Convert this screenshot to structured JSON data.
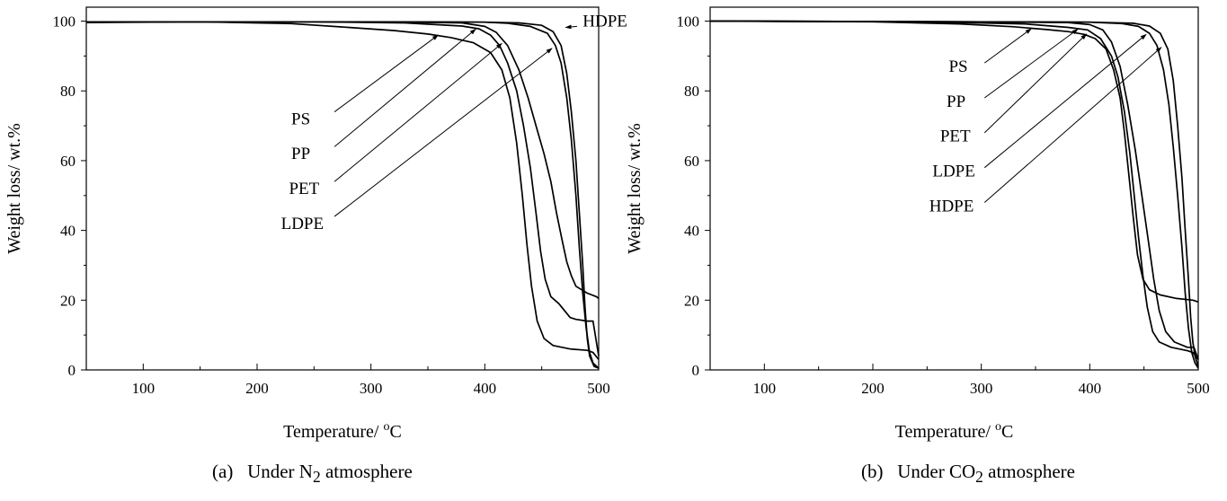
{
  "chart_data": [
    {
      "type": "line",
      "caption": {
        "label": "(a)",
        "pre": "Under N",
        "sub": "2",
        "post": " atmosphere"
      },
      "xlabel": "Temperature/ ",
      "xlabel_sup": "o",
      "xlabel_unit": "C",
      "ylabel": "Weight loss/ wt.%",
      "xlim": [
        50,
        500
      ],
      "ylim": [
        0,
        104
      ],
      "xticks": [
        100,
        200,
        300,
        400,
        500
      ],
      "yticks": [
        0,
        20,
        40,
        60,
        80,
        100
      ],
      "series": [
        {
          "name": "PS",
          "points": [
            [
              50,
              99.6
            ],
            [
              150,
              99.8
            ],
            [
              230,
              99.3
            ],
            [
              280,
              98.2
            ],
            [
              320,
              97.3
            ],
            [
              350,
              96.3
            ],
            [
              370,
              95.3
            ],
            [
              390,
              93.8
            ],
            [
              405,
              91
            ],
            [
              415,
              86
            ],
            [
              422,
              78
            ],
            [
              428,
              65
            ],
            [
              433,
              50
            ],
            [
              437,
              36
            ],
            [
              441,
              24
            ],
            [
              446,
              14
            ],
            [
              452,
              9
            ],
            [
              460,
              7
            ],
            [
              475,
              6
            ],
            [
              490,
              5.6
            ],
            [
              495,
              5
            ],
            [
              500,
              3
            ]
          ]
        },
        {
          "name": "PP",
          "points": [
            [
              50,
              99.8
            ],
            [
              250,
              99.8
            ],
            [
              330,
              99.5
            ],
            [
              380,
              98.6
            ],
            [
              395,
              97.8
            ],
            [
              405,
              96
            ],
            [
              413,
              93
            ],
            [
              420,
              88
            ],
            [
              428,
              80
            ],
            [
              434,
              70
            ],
            [
              440,
              58
            ],
            [
              445,
              45
            ],
            [
              449,
              34
            ],
            [
              453,
              26
            ],
            [
              458,
              21
            ],
            [
              465,
              19
            ],
            [
              475,
              15
            ],
            [
              480,
              14.5
            ],
            [
              490,
              14
            ],
            [
              495,
              14
            ],
            [
              500,
              4
            ]
          ]
        },
        {
          "name": "PET",
          "points": [
            [
              50,
              99.8
            ],
            [
              300,
              99.8
            ],
            [
              380,
              99.5
            ],
            [
              400,
              98.5
            ],
            [
              410,
              96.8
            ],
            [
              420,
              93
            ],
            [
              430,
              86
            ],
            [
              438,
              78
            ],
            [
              445,
              70
            ],
            [
              452,
              62
            ],
            [
              458,
              54
            ],
            [
              463,
              45
            ],
            [
              468,
              37
            ],
            [
              472,
              31
            ],
            [
              476,
              27
            ],
            [
              480,
              24
            ],
            [
              490,
              22
            ],
            [
              498,
              21
            ],
            [
              500,
              20.5
            ]
          ]
        },
        {
          "name": "LDPE",
          "points": [
            [
              50,
              99.8
            ],
            [
              300,
              99.8
            ],
            [
              400,
              99.7
            ],
            [
              420,
              99.4
            ],
            [
              440,
              98.5
            ],
            [
              455,
              96.5
            ],
            [
              462,
              93
            ],
            [
              467,
              88
            ],
            [
              472,
              78
            ],
            [
              476,
              66
            ],
            [
              480,
              50
            ],
            [
              483,
              35
            ],
            [
              486,
              22
            ],
            [
              489,
              12
            ],
            [
              492,
              5
            ],
            [
              495,
              2
            ],
            [
              500,
              0.5
            ]
          ]
        },
        {
          "name": "HDPE",
          "points": [
            [
              50,
              99.8
            ],
            [
              300,
              99.8
            ],
            [
              400,
              99.7
            ],
            [
              430,
              99.5
            ],
            [
              450,
              98.8
            ],
            [
              460,
              97
            ],
            [
              467,
              93
            ],
            [
              472,
              85
            ],
            [
              476,
              74
            ],
            [
              480,
              60
            ],
            [
              483,
              45
            ],
            [
              486,
              30
            ],
            [
              488,
              18
            ],
            [
              490,
              9
            ],
            [
              492,
              4
            ],
            [
              496,
              1
            ],
            [
              500,
              0.5
            ]
          ]
        }
      ],
      "annotations": [
        {
          "text": "PS",
          "target": [
            359,
            96.0
          ],
          "anchor": [
            268,
            74
          ],
          "text_xy": [
            230,
            72
          ]
        },
        {
          "text": "PP",
          "target": [
            392,
            97.7
          ],
          "anchor": [
            268,
            64
          ],
          "text_xy": [
            230,
            62
          ]
        },
        {
          "text": "PET",
          "target": [
            415,
            93.6
          ],
          "anchor": [
            268,
            54
          ],
          "text_xy": [
            228,
            52
          ]
        },
        {
          "text": "LDPE",
          "target": [
            459,
            92.2
          ],
          "anchor": [
            268,
            44
          ],
          "text_xy": [
            221,
            42
          ]
        },
        {
          "text": "HDPE",
          "target": [
            471,
            98.2
          ],
          "anchor": [
            481,
            98.5
          ],
          "text_xy": [
            486,
            100
          ]
        }
      ]
    },
    {
      "type": "line",
      "caption": {
        "label": "(b)",
        "pre": "Under CO",
        "sub": "2",
        "post": " atmosphere"
      },
      "xlabel": "Temperature/ ",
      "xlabel_sup": "o",
      "xlabel_unit": "C",
      "ylabel": "Weight loss/ wt.%",
      "xlim": [
        50,
        500
      ],
      "ylim": [
        0,
        104
      ],
      "xticks": [
        100,
        200,
        300,
        400,
        500
      ],
      "yticks": [
        0,
        20,
        40,
        60,
        80,
        100
      ],
      "series": [
        {
          "name": "PS",
          "points": [
            [
              50,
              100
            ],
            [
              200,
              99.8
            ],
            [
              280,
              99.2
            ],
            [
              330,
              98.4
            ],
            [
              360,
              97.6
            ],
            [
              380,
              97
            ],
            [
              395,
              96.2
            ],
            [
              405,
              95
            ],
            [
              415,
              92
            ],
            [
              422,
              86
            ],
            [
              428,
              78
            ],
            [
              432,
              68
            ],
            [
              436,
              56
            ],
            [
              440,
              44
            ],
            [
              444,
              33
            ],
            [
              449,
              26
            ],
            [
              455,
              23
            ],
            [
              465,
              21.5
            ],
            [
              480,
              20.5
            ],
            [
              495,
              20
            ],
            [
              500,
              19.5
            ]
          ]
        },
        {
          "name": "PP",
          "points": [
            [
              50,
              100
            ],
            [
              250,
              99.8
            ],
            [
              340,
              99.2
            ],
            [
              380,
              98.2
            ],
            [
              398,
              97.5
            ],
            [
              410,
              95
            ],
            [
              420,
              90
            ],
            [
              426,
              84
            ],
            [
              432,
              74
            ],
            [
              437,
              62
            ],
            [
              441,
              50
            ],
            [
              445,
              38
            ],
            [
              449,
              27
            ],
            [
              453,
              18
            ],
            [
              458,
              11
            ],
            [
              464,
              8
            ],
            [
              475,
              6.5
            ],
            [
              490,
              5.5
            ],
            [
              495,
              5
            ],
            [
              500,
              3
            ]
          ]
        },
        {
          "name": "PET",
          "points": [
            [
              50,
              100
            ],
            [
              300,
              99.8
            ],
            [
              380,
              99.6
            ],
            [
              400,
              99
            ],
            [
              412,
              97.5
            ],
            [
              420,
              94
            ],
            [
              428,
              87
            ],
            [
              435,
              76
            ],
            [
              442,
              63
            ],
            [
              448,
              50
            ],
            [
              454,
              37
            ],
            [
              459,
              26
            ],
            [
              464,
              17
            ],
            [
              470,
              11
            ],
            [
              478,
              8
            ],
            [
              490,
              6.5
            ],
            [
              496,
              6.5
            ],
            [
              500,
              3
            ]
          ]
        },
        {
          "name": "LDPE",
          "points": [
            [
              50,
              100
            ],
            [
              300,
              99.8
            ],
            [
              400,
              99.7
            ],
            [
              430,
              99.3
            ],
            [
              445,
              98.5
            ],
            [
              455,
              96.5
            ],
            [
              462,
              93
            ],
            [
              468,
              86
            ],
            [
              473,
              76
            ],
            [
              477,
              64
            ],
            [
              481,
              50
            ],
            [
              485,
              35
            ],
            [
              488,
              22
            ],
            [
              491,
              12
            ],
            [
              494,
              5
            ],
            [
              497,
              2
            ],
            [
              500,
              0.5
            ]
          ]
        },
        {
          "name": "HDPE",
          "points": [
            [
              50,
              100
            ],
            [
              300,
              99.8
            ],
            [
              400,
              99.7
            ],
            [
              440,
              99.4
            ],
            [
              455,
              98.6
            ],
            [
              465,
              96.5
            ],
            [
              472,
              92
            ],
            [
              477,
              83
            ],
            [
              481,
              70
            ],
            [
              485,
              55
            ],
            [
              488,
              40
            ],
            [
              491,
              26
            ],
            [
              493,
              15
            ],
            [
              495,
              8
            ],
            [
              497,
              4
            ],
            [
              500,
              1
            ]
          ]
        }
      ],
      "annotations": [
        {
          "text": "PS",
          "target": [
            346,
            97.8
          ],
          "anchor": [
            303,
            88
          ],
          "text_xy": [
            270,
            87
          ]
        },
        {
          "text": "PP",
          "target": [
            389,
            97.7
          ],
          "anchor": [
            303,
            78
          ],
          "text_xy": [
            268,
            77
          ]
        },
        {
          "text": "PET",
          "target": [
            397,
            96.3
          ],
          "anchor": [
            303,
            68
          ],
          "text_xy": [
            262,
            67
          ]
        },
        {
          "text": "LDPE",
          "target": [
            452,
            96.2
          ],
          "anchor": [
            303,
            58
          ],
          "text_xy": [
            255,
            57
          ]
        },
        {
          "text": "HDPE",
          "target": [
            466,
            92.5
          ],
          "anchor": [
            303,
            48
          ],
          "text_xy": [
            252,
            47
          ]
        }
      ]
    }
  ]
}
